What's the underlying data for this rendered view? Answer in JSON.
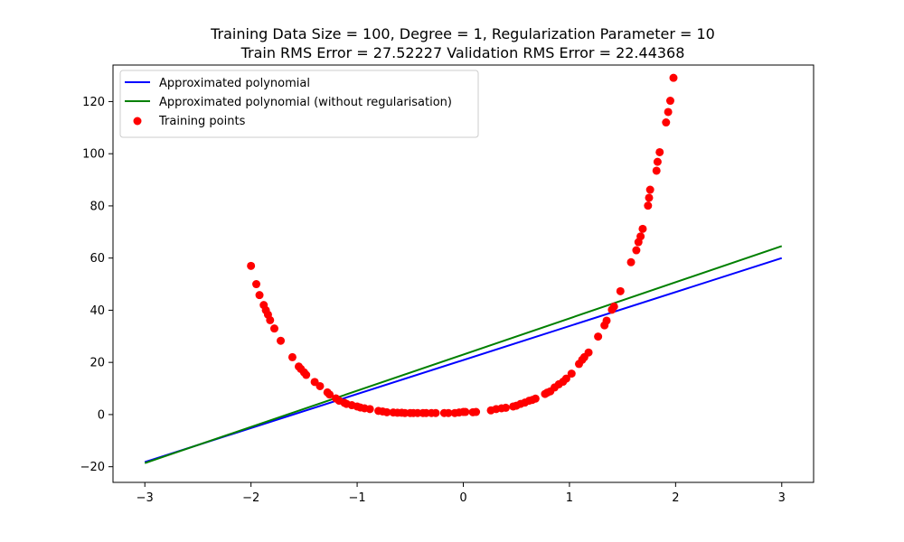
{
  "chart_data": {
    "type": "scatter",
    "title_line1": "Training Data Size = 100, Degree = 1, Regularization Parameter = 10",
    "title_line2": "Train RMS Error = 27.52227 Validation RMS Error = 22.44368",
    "xlabel": "",
    "ylabel": "",
    "xlim": [
      -3.3,
      3.3
    ],
    "ylim": [
      -26,
      134
    ],
    "x_ticks": [
      -3,
      -2,
      -1,
      0,
      1,
      2,
      3
    ],
    "x_tick_labels": [
      "−3",
      "−2",
      "−1",
      "0",
      "1",
      "2",
      "3"
    ],
    "y_ticks": [
      -20,
      0,
      20,
      40,
      60,
      80,
      100,
      120
    ],
    "y_tick_labels": [
      "−20",
      "0",
      "20",
      "40",
      "60",
      "80",
      "100",
      "120"
    ],
    "grid": false,
    "legend_position": "top-left",
    "series": [
      {
        "name": "Approximated polynomial",
        "kind": "line",
        "color": "#0000ff",
        "x": [
          -3,
          3
        ],
        "y": [
          -18.2,
          60.0
        ]
      },
      {
        "name": "Approximated polynomial (without regularisation)",
        "kind": "line",
        "color": "#008000",
        "x": [
          -3,
          3
        ],
        "y": [
          -18.6,
          64.6
        ]
      },
      {
        "name": "Training points",
        "kind": "scatter",
        "color": "#ff0000",
        "points": [
          [
            -2.0,
            57.0
          ],
          [
            -1.95,
            50.0
          ],
          [
            -1.92,
            45.8
          ],
          [
            -1.88,
            42.0
          ],
          [
            -1.86,
            40.0
          ],
          [
            -1.84,
            38.3
          ],
          [
            -1.82,
            36.2
          ],
          [
            -1.78,
            33.0
          ],
          [
            -1.72,
            28.3
          ],
          [
            -1.61,
            22.0
          ],
          [
            -1.55,
            18.4
          ],
          [
            -1.53,
            17.5
          ],
          [
            -1.5,
            16.2
          ],
          [
            -1.48,
            15.2
          ],
          [
            -1.4,
            12.5
          ],
          [
            -1.35,
            10.9
          ],
          [
            -1.28,
            8.5
          ],
          [
            -1.26,
            7.7
          ],
          [
            -1.2,
            6.2
          ],
          [
            -1.17,
            5.3
          ],
          [
            -1.12,
            4.5
          ],
          [
            -1.1,
            4.1
          ],
          [
            -1.05,
            3.6
          ],
          [
            -1.0,
            3.1
          ],
          [
            -0.97,
            2.7
          ],
          [
            -0.93,
            2.4
          ],
          [
            -0.88,
            2.1
          ],
          [
            -0.8,
            1.4
          ],
          [
            -0.76,
            1.2
          ],
          [
            -0.72,
            0.9
          ],
          [
            -0.66,
            0.8
          ],
          [
            -0.62,
            0.7
          ],
          [
            -0.58,
            0.7
          ],
          [
            -0.55,
            0.6
          ],
          [
            -0.5,
            0.6
          ],
          [
            -0.47,
            0.6
          ],
          [
            -0.43,
            0.6
          ],
          [
            -0.38,
            0.6
          ],
          [
            -0.35,
            0.6
          ],
          [
            -0.3,
            0.6
          ],
          [
            -0.26,
            0.6
          ],
          [
            -0.18,
            0.6
          ],
          [
            -0.14,
            0.6
          ],
          [
            -0.08,
            0.6
          ],
          [
            -0.04,
            0.8
          ],
          [
            0.0,
            1.0
          ],
          [
            0.02,
            1.0
          ],
          [
            0.09,
            0.9
          ],
          [
            0.12,
            1.0
          ],
          [
            0.26,
            1.6
          ],
          [
            0.31,
            2.1
          ],
          [
            0.36,
            2.4
          ],
          [
            0.4,
            2.6
          ],
          [
            0.47,
            3.1
          ],
          [
            0.5,
            3.4
          ],
          [
            0.54,
            4.1
          ],
          [
            0.58,
            4.6
          ],
          [
            0.62,
            5.3
          ],
          [
            0.65,
            5.6
          ],
          [
            0.68,
            6.1
          ],
          [
            0.77,
            7.9
          ],
          [
            0.79,
            8.4
          ],
          [
            0.82,
            8.9
          ],
          [
            0.86,
            10.4
          ],
          [
            0.9,
            11.6
          ],
          [
            0.94,
            12.6
          ],
          [
            0.97,
            13.8
          ],
          [
            1.02,
            15.7
          ],
          [
            1.09,
            19.4
          ],
          [
            1.12,
            21.0
          ],
          [
            1.14,
            22.0
          ],
          [
            1.18,
            23.8
          ],
          [
            1.27,
            29.9
          ],
          [
            1.33,
            34.2
          ],
          [
            1.35,
            36.0
          ],
          [
            1.4,
            40.2
          ],
          [
            1.42,
            41.4
          ],
          [
            1.48,
            47.3
          ],
          [
            1.58,
            58.4
          ],
          [
            1.63,
            63.0
          ],
          [
            1.65,
            66.1
          ],
          [
            1.67,
            68.3
          ],
          [
            1.69,
            71.2
          ],
          [
            1.74,
            80.1
          ],
          [
            1.75,
            83.1
          ],
          [
            1.76,
            86.2
          ],
          [
            1.82,
            93.5
          ],
          [
            1.83,
            96.9
          ],
          [
            1.85,
            100.6
          ],
          [
            1.91,
            112.0
          ],
          [
            1.93,
            116.0
          ],
          [
            1.95,
            120.3
          ],
          [
            1.98,
            129.1
          ]
        ]
      }
    ]
  }
}
